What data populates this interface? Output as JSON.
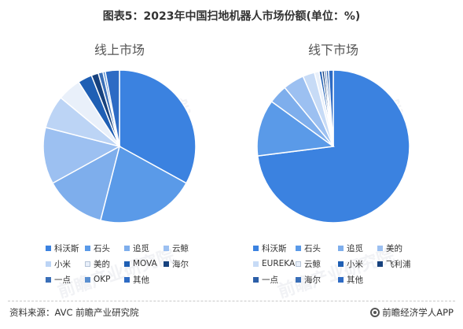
{
  "header": {
    "title": "图表5：2023年中国扫地机器人市场份额(单位：%)"
  },
  "watermark": {
    "text": "前瞻产业研究院"
  },
  "footer": {
    "source": "资料来源：AVC 前瞻产业研究院",
    "brand": "前瞻经济学人APP"
  },
  "chart_data": [
    {
      "type": "pie",
      "title": "线上市场",
      "start_angle_deg": 0,
      "direction": "clockwise",
      "slices": [
        {
          "label": "科沃斯",
          "value": 33.0,
          "color": "#3b82e0"
        },
        {
          "label": "石头",
          "value": 21.0,
          "color": "#5a9ae8"
        },
        {
          "label": "追觅",
          "value": 13.0,
          "color": "#7eaeec"
        },
        {
          "label": "云鲸",
          "value": 12.0,
          "color": "#9cc0f1"
        },
        {
          "label": "小米",
          "value": 7.0,
          "color": "#bcd4f5"
        },
        {
          "label": "美的",
          "value": 5.0,
          "color": "#e9f0fa"
        },
        {
          "label": "MOVA",
          "value": 3.0,
          "color": "#1f5fb4"
        },
        {
          "label": "海尔",
          "value": 1.5,
          "color": "#17427e"
        },
        {
          "label": "一点",
          "value": 1.0,
          "color": "#3a6fb8"
        },
        {
          "label": "OKP",
          "value": 0.5,
          "color": "#5a8fd0"
        },
        {
          "label": "其他",
          "value": 3.0,
          "color": "#2e6bc4"
        }
      ],
      "legend": [
        [
          "科沃斯",
          "石头",
          "追觅",
          "云鲸"
        ],
        [
          "小米",
          "美的",
          "MOVA",
          "海尔"
        ],
        [
          "一点",
          "OKP",
          "其他"
        ]
      ]
    },
    {
      "type": "pie",
      "title": "线下市场",
      "start_angle_deg": 0,
      "direction": "clockwise",
      "slices": [
        {
          "label": "科沃斯",
          "value": 73.0,
          "color": "#3b82e0"
        },
        {
          "label": "石头",
          "value": 12.0,
          "color": "#5a9ae8"
        },
        {
          "label": "追觅",
          "value": 4.0,
          "color": "#7eaeec"
        },
        {
          "label": "美的",
          "value": 4.5,
          "color": "#9cc0f1"
        },
        {
          "label": "EUREKA",
          "value": 2.5,
          "color": "#c7dbf6"
        },
        {
          "label": "云鲸",
          "value": 1.0,
          "color": "#e9f0fa"
        },
        {
          "label": "小米",
          "value": 0.6,
          "color": "#1f5fb4"
        },
        {
          "label": "飞利浦",
          "value": 0.5,
          "color": "#17427e"
        },
        {
          "label": "一点",
          "value": 0.4,
          "color": "#2c5fa8"
        },
        {
          "label": "海尔",
          "value": 0.5,
          "color": "#3a6fb8"
        },
        {
          "label": "其他",
          "value": 1.0,
          "color": "#2e6bc4"
        }
      ],
      "legend": [
        [
          "科沃斯",
          "石头",
          "追觅",
          "美的"
        ],
        [
          "EUREKA",
          "云鲸",
          "小米",
          "飞利浦"
        ],
        [
          "一点",
          "海尔",
          "其他"
        ]
      ]
    }
  ]
}
